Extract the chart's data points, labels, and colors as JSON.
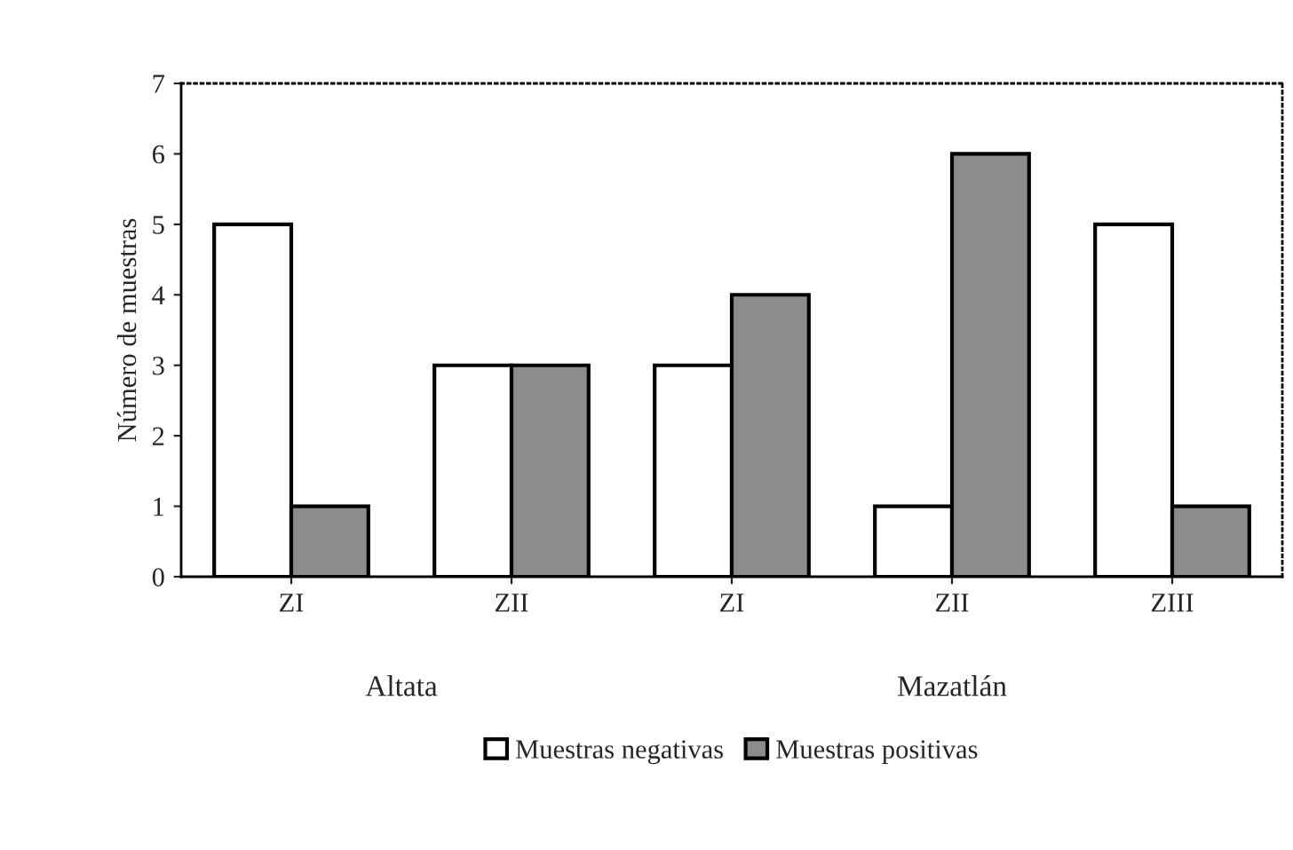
{
  "chart_data": {
    "type": "bar",
    "ylabel": "Número de muestras",
    "categories": [
      "ZI",
      "ZII",
      "ZI",
      "ZII",
      "ZIII"
    ],
    "series": [
      {
        "name": "Muestras negativas",
        "color": "#ffffff",
        "values": [
          5,
          3,
          3,
          1,
          5
        ]
      },
      {
        "name": "Muestras positivas",
        "color": "#8c8c8c",
        "values": [
          1,
          3,
          4,
          6,
          1
        ]
      }
    ],
    "annotations": [
      "Altata",
      "Mazatlán"
    ],
    "ylim": [
      0,
      7
    ],
    "yticks": [
      0,
      1,
      2,
      3,
      4,
      5,
      6,
      7
    ],
    "grid": false,
    "legend": "bottom"
  }
}
